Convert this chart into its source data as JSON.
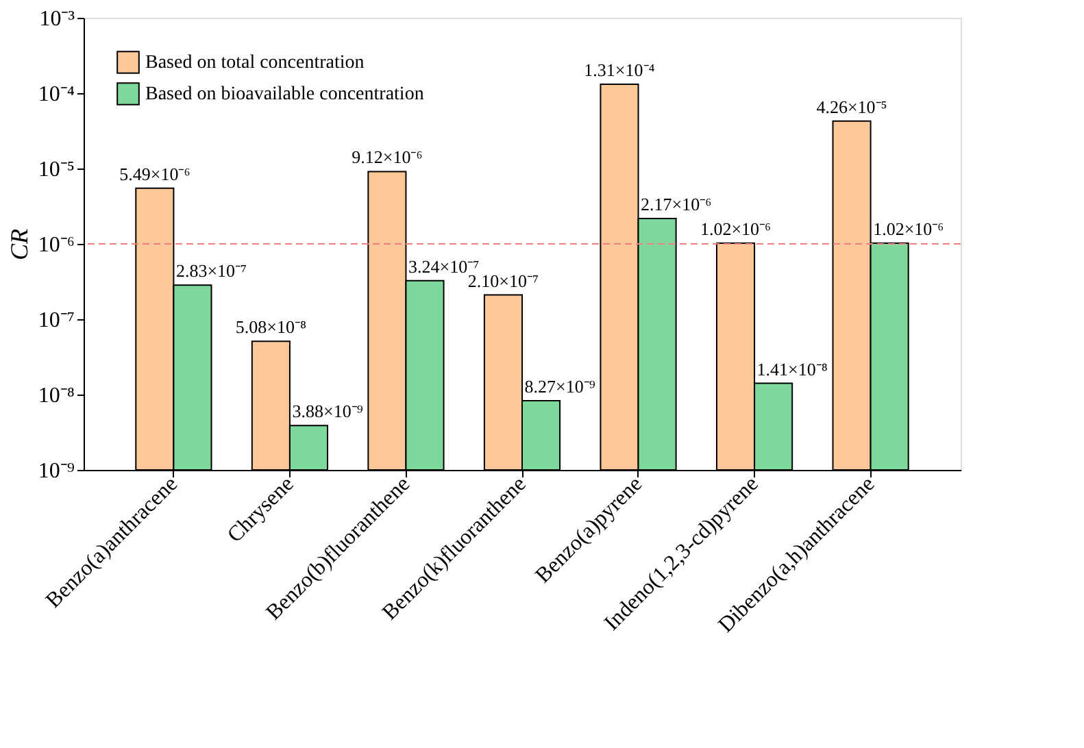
{
  "chart_data": {
    "type": "bar",
    "ylabel": "CR",
    "log": true,
    "grid": false,
    "legend": "top left",
    "categories": [
      "Benzo(a)anthracene",
      "Chrysene",
      "Benzo(b)fluoranthene",
      "Benzo(k)fluoranthene",
      "Benzo(a)pyrene",
      "Indeno(1,2,3-cd)pyrene",
      "Dibenzo(a,h)anthracene"
    ],
    "ylim": [
      1e-09,
      0.001
    ],
    "yticks": [
      {
        "value": 1e-09,
        "label": "10⁻⁹"
      },
      {
        "value": 1e-08,
        "label": "10⁻⁸"
      },
      {
        "value": 1e-07,
        "label": "10⁻⁷"
      },
      {
        "value": 1e-06,
        "label": "10⁻⁶"
      },
      {
        "value": 1e-05,
        "label": "10⁻⁵"
      },
      {
        "value": 0.0001,
        "label": "10⁻⁴"
      },
      {
        "value": 0.001,
        "label": "10⁻³"
      }
    ],
    "series": [
      {
        "name": "Based on total concentration",
        "color": "#fdc899",
        "values": [
          5.49e-06,
          5.08e-08,
          9.12e-06,
          2.1e-07,
          0.000131,
          1.02e-06,
          4.26e-05
        ],
        "value_labels": [
          "5.49×10⁻⁶",
          "5.08×10⁻⁸",
          "9.12×10⁻⁶",
          "2.10×10⁻⁷",
          "1.31×10⁻⁴",
          "1.02×10⁻⁶",
          "4.26×10⁻⁵"
        ]
      },
      {
        "name": "Based on bioavailable concentration",
        "color": "#7ed79b",
        "values": [
          2.83e-07,
          3.88e-09,
          3.24e-07,
          8.27e-09,
          2.17e-06,
          1.41e-08,
          1.02e-06
        ],
        "value_labels": [
          "2.83×10⁻⁷",
          "3.88×10⁻⁹",
          "3.24×10⁻⁷",
          "8.27×10⁻⁹",
          "2.17×10⁻⁶",
          "1.41×10⁻⁸",
          "1.02×10⁻⁶"
        ]
      }
    ],
    "ref_lines": [
      {
        "axis": "y",
        "value": 1e-06,
        "color": "#f08080",
        "line_style": "dashed"
      }
    ]
  }
}
